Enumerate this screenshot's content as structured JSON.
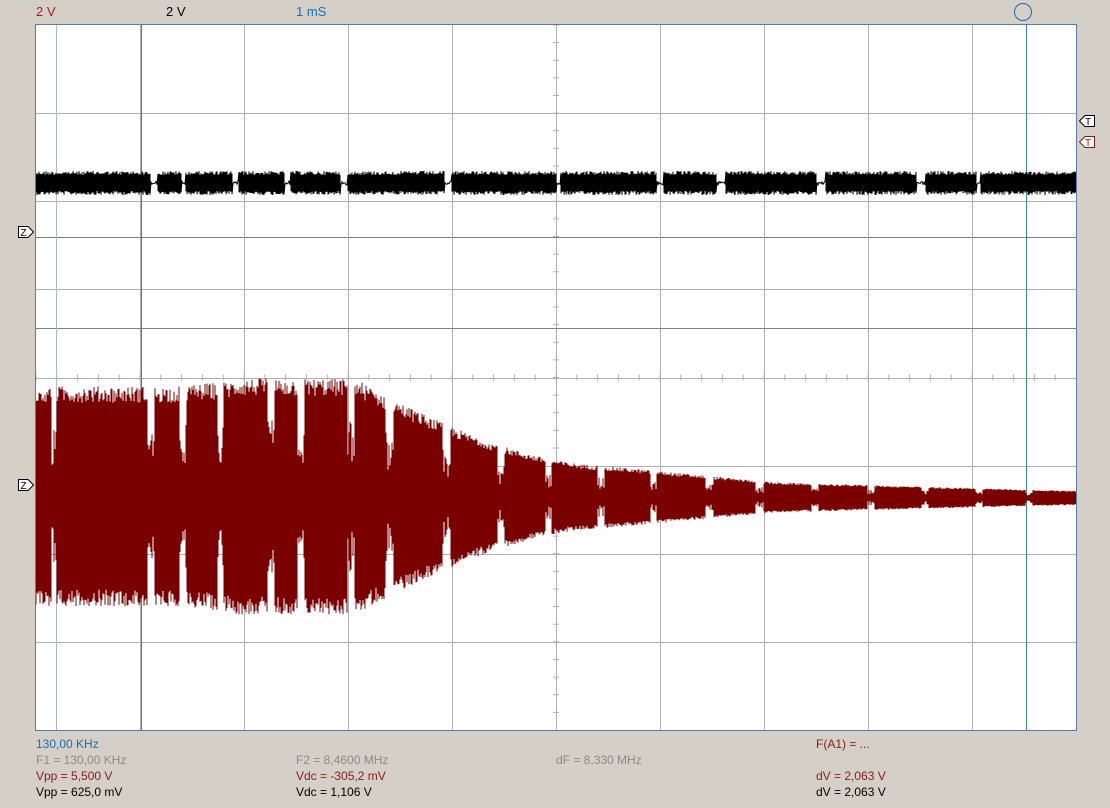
{
  "header": {
    "ch1_scale": "2 V",
    "ch2_scale": "2 V",
    "timebase": "1 mS"
  },
  "icons": {
    "run_status": "circle-icon",
    "trigger_marker": "trigger-T-icon",
    "zero_marker": "zero-Z-icon"
  },
  "colors": {
    "ch1_trace": "#000000",
    "ch2_trace": "#7a0000",
    "cursor": "#3a8a8a",
    "grid": "#b0b0b0"
  },
  "markers": {
    "trigger_label": "T",
    "zero_label": "Z"
  },
  "measurements": {
    "cursor_freq": "130,00 KHz",
    "f1": "F1 = 130,00 KHz",
    "f2": "F2 = 8,4600 MHz",
    "df": "dF = 8,330 MHz",
    "fa1": "F(A1) = ...",
    "ch2_vpp": "Vpp = 5,500 V",
    "ch2_vdc": "Vdc = -305,2 mV",
    "ch2_dv": "dV = 2,063 V",
    "ch1_vpp": "Vpp = 625,0 mV",
    "ch1_vdc": "Vdc = 1,106 V",
    "ch1_dv": "dV = 2,063 V"
  }
}
